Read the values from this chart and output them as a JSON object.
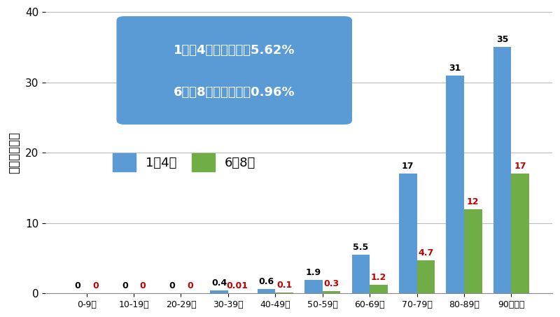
{
  "categories": [
    "0-9歳",
    "10-19歳",
    "20-29歳",
    "30-39歳",
    "40-49歳",
    "50-59歳",
    "60-69歳",
    "70-79歳",
    "80-89歳",
    "90歳以上"
  ],
  "values_jan_apr": [
    0,
    0,
    0,
    0.4,
    0.6,
    1.9,
    5.5,
    17,
    31,
    35
  ],
  "values_jun_aug": [
    0,
    0,
    0,
    0.01,
    0.1,
    0.3,
    1.2,
    4.7,
    12,
    17
  ],
  "labels_jan_apr": [
    "0",
    "0",
    "0",
    "0.4",
    "0.6",
    "1.9",
    "5.5",
    "17",
    "31",
    "35"
  ],
  "labels_jun_aug": [
    "0",
    "0",
    "0",
    "0.01",
    "0.1",
    "0.3",
    "1.2",
    "4.7",
    "12",
    "17"
  ],
  "show_jan_apr_label": [
    true,
    true,
    true,
    true,
    true,
    true,
    true,
    true,
    true,
    true
  ],
  "show_jun_aug_label": [
    true,
    true,
    true,
    true,
    true,
    true,
    true,
    true,
    true,
    true
  ],
  "color_jan_apr": "#5B9BD5",
  "color_jun_aug": "#70AD47",
  "label_color_jan_apr": "#000000",
  "label_color_jun_aug": "#C00000",
  "ylabel": "致死率（％）",
  "ylim": [
    0,
    40
  ],
  "yticks": [
    0,
    10,
    20,
    30,
    40
  ],
  "legend_jan_apr": "1～4月",
  "legend_jun_aug": "6～8月",
  "annotation_line1": "1月～4月の致死率：5.62%",
  "annotation_line2": "6月～8月の致死率：0.96%",
  "annotation_box_color": "#5B9BD5",
  "annotation_text_color": "#FFFFFF",
  "background_color": "#FFFFFF",
  "bar_width": 0.38,
  "figsize": [
    8.0,
    4.53
  ],
  "dpi": 100
}
